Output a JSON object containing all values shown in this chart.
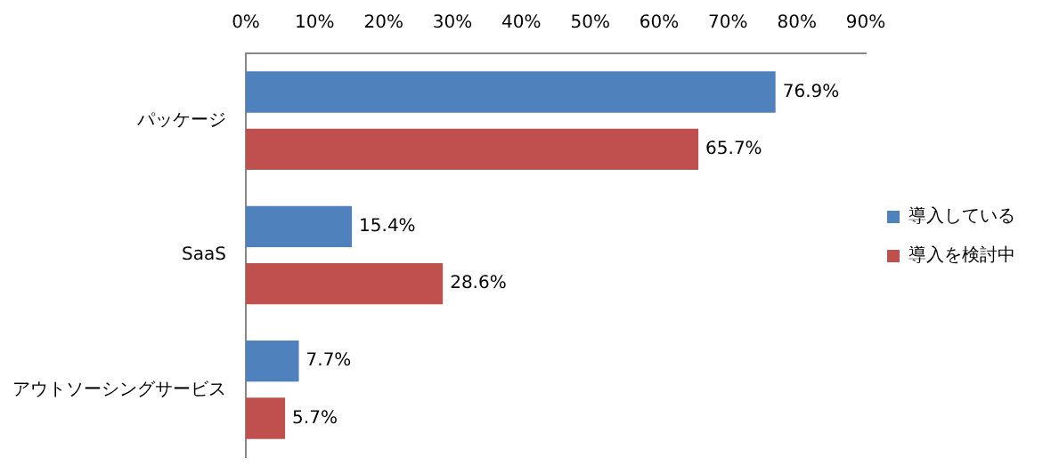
{
  "chart_data": {
    "type": "bar",
    "orientation": "horizontal",
    "categories": [
      "パッケージ",
      "SaaS",
      "アウトソーシングサービス"
    ],
    "series": [
      {
        "name": "導入している",
        "color": "#4f81bd",
        "values": [
          76.9,
          15.4,
          7.7
        ],
        "value_labels": [
          "76.9%",
          "15.4%",
          "7.7%"
        ]
      },
      {
        "name": "導入を検討中",
        "color": "#c0504d",
        "values": [
          65.7,
          28.6,
          5.7
        ],
        "value_labels": [
          "65.7%",
          "28.6%",
          "5.7%"
        ]
      }
    ],
    "xlim": [
      0,
      90
    ],
    "xticks": [
      {
        "value": 0,
        "label": "0%"
      },
      {
        "value": 10,
        "label": "10%"
      },
      {
        "value": 20,
        "label": "20%"
      },
      {
        "value": 30,
        "label": "30%"
      },
      {
        "value": 40,
        "label": "40%"
      },
      {
        "value": 50,
        "label": "50%"
      },
      {
        "value": 60,
        "label": "60%"
      },
      {
        "value": 70,
        "label": "70%"
      },
      {
        "value": 80,
        "label": "80%"
      },
      {
        "value": 90,
        "label": "90%"
      }
    ],
    "grid": false,
    "legend": "right"
  }
}
